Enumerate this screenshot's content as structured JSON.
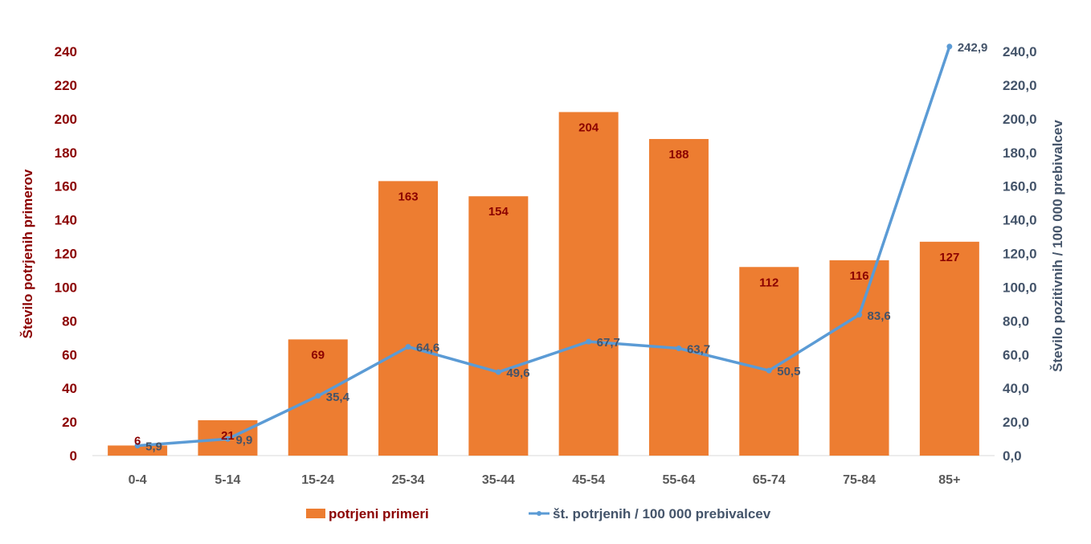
{
  "chart_data": {
    "type": "bar",
    "categories": [
      "0-4",
      "5-14",
      "15-24",
      "25-34",
      "35-44",
      "45-54",
      "55-64",
      "65-74",
      "75-84",
      "85+"
    ],
    "series": [
      {
        "name": "potrjeni primeri",
        "type": "bar",
        "axis": "left",
        "color": "#ed7d31",
        "label_color": "#8b0000",
        "values": [
          6,
          21,
          69,
          163,
          154,
          204,
          188,
          112,
          116,
          127
        ],
        "labels": [
          "6",
          "21",
          "69",
          "163",
          "154",
          "204",
          "188",
          "112",
          "116",
          "127"
        ]
      },
      {
        "name": "št. potrjenih / 100 000 prebivalcev",
        "type": "line",
        "axis": "right",
        "color": "#5b9bd5",
        "label_color": "#44546a",
        "values": [
          5.9,
          9.9,
          35.4,
          64.6,
          49.6,
          67.7,
          63.7,
          50.5,
          83.6,
          242.9
        ],
        "labels": [
          "5,9",
          "9,9",
          "35,4",
          "64,6",
          "49,6",
          "67,7",
          "63,7",
          "50,5",
          "83,6",
          "242,9"
        ]
      }
    ],
    "y_left": {
      "label": "Število potrjenih  primerov",
      "color": "#8b0000",
      "range": [
        0,
        240
      ],
      "ticks": [
        "0",
        "20",
        "40",
        "60",
        "80",
        "100",
        "120",
        "140",
        "160",
        "180",
        "200",
        "220",
        "240"
      ]
    },
    "y_right": {
      "label": "Število pozitivnih  / 100 000 prebivalcev",
      "color": "#44546a",
      "range": [
        0,
        240
      ],
      "ticks": [
        "0,0",
        "20,0",
        "40,0",
        "60,0",
        "80,0",
        "100,0",
        "120,0",
        "140,0",
        "160,0",
        "180,0",
        "200,0",
        "220,0",
        "240,0"
      ]
    },
    "x_tick_color": "#595959",
    "grid": false,
    "legend": {
      "position": "bottom",
      "bar_label": "potrjeni primeri",
      "line_label": "št. potrjenih / 100 000 prebivalcev"
    }
  }
}
